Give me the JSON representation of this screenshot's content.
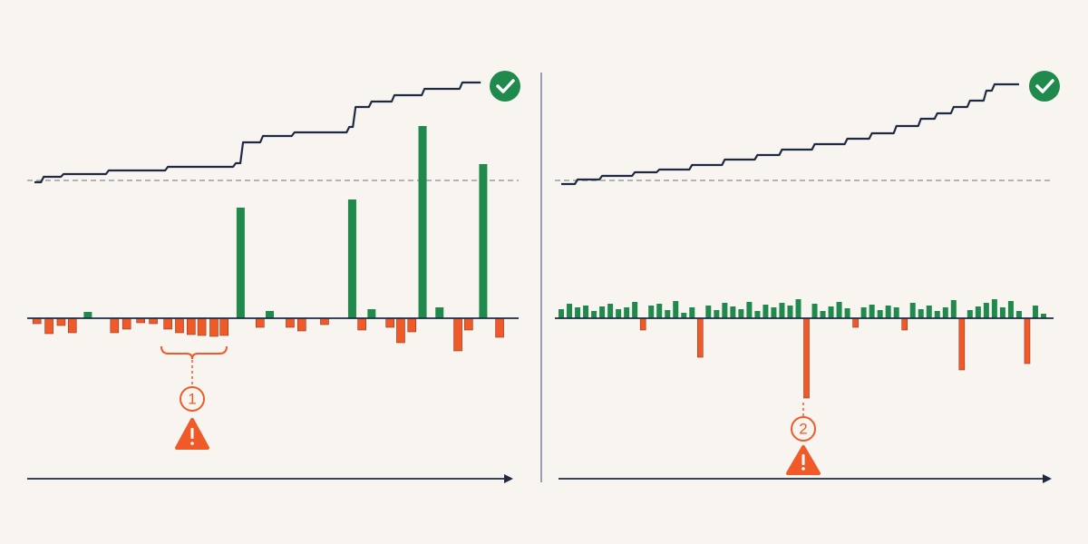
{
  "chart_data": [
    {
      "type": "bar",
      "step": true,
      "x": [
        2,
        4.5,
        7,
        9.3,
        12.5,
        18,
        20.5,
        23.4,
        26,
        29,
        31.4,
        33.8,
        36,
        38.5,
        40.6,
        44,
        48,
        50,
        54.2,
        56.6,
        61.3,
        67,
        69,
        71,
        74.8,
        77,
        79.3,
        81.5,
        85,
        88.8,
        91,
        94,
        97.4
      ],
      "values": [
        -6,
        -17,
        -8,
        -16,
        7,
        -16,
        -12,
        -5,
        -6,
        -12,
        -16,
        -18,
        -19,
        -20,
        -19,
        122,
        -10,
        8,
        -10,
        -14,
        -7,
        131,
        -13,
        10,
        -10,
        -27,
        -15,
        212,
        12,
        -36,
        -13,
        170,
        -21
      ],
      "xlim": [
        0,
        100
      ],
      "ylim": [
        -100,
        220
      ],
      "line": {
        "x": [
          1.5,
          3.4,
          7.5,
          16.8,
          29,
          43,
          44.5,
          48.6,
          55.1,
          66.4,
          67.7,
          71,
          75.7,
          81.9,
          89.7,
          93.5
        ],
        "values": [
          0,
          6,
          9,
          13,
          17,
          21,
          44,
          51,
          55,
          61,
          83,
          89,
          96,
          103,
          110,
          110
        ]
      },
      "line_ylim": [
        0,
        120
      ],
      "positive_color": "#1f8a4c",
      "negative_color": "#f05a28",
      "line_color": "#1e2a44",
      "annotation": "1"
    },
    {
      "type": "bar",
      "step": true,
      "x": [
        0,
        1,
        2,
        3,
        4,
        5,
        6,
        7,
        8,
        9,
        10,
        11,
        12,
        13,
        14,
        15,
        16,
        17,
        18,
        19,
        20,
        21,
        22,
        23,
        24,
        25,
        26,
        27,
        28,
        29,
        30,
        31,
        32,
        33,
        34,
        35,
        36,
        37,
        38,
        39,
        40,
        41,
        42,
        43,
        44,
        45,
        46,
        47,
        48,
        49,
        50,
        51,
        52,
        53,
        54,
        55,
        56,
        57,
        58,
        59
      ],
      "values": [
        10,
        16,
        12,
        14,
        8,
        13,
        16,
        10,
        12,
        18,
        -13,
        14,
        16,
        9,
        19,
        6,
        12,
        -43,
        14,
        9,
        17,
        13,
        10,
        18,
        8,
        15,
        12,
        17,
        14,
        21,
        -88,
        16,
        8,
        13,
        18,
        11,
        -10,
        12,
        15,
        9,
        14,
        12,
        -13,
        17,
        10,
        14,
        8,
        12,
        20,
        -57,
        9,
        13,
        17,
        21,
        12,
        19,
        8,
        -50,
        14,
        5
      ],
      "xlim": [
        -1,
        60
      ],
      "ylim": [
        -100,
        220
      ],
      "line": {
        "x": [
          0,
          2,
          5,
          9,
          12,
          16,
          20,
          24,
          27,
          31,
          35,
          38,
          41,
          44,
          46,
          48,
          50,
          52,
          53,
          56
        ],
        "values": [
          -2,
          3,
          7,
          11,
          14,
          19,
          25,
          30,
          36,
          42,
          48,
          54,
          62,
          70,
          76,
          83,
          90,
          101,
          108,
          108
        ]
      },
      "line_ylim": [
        0,
        120
      ],
      "positive_color": "#1f8a4c",
      "negative_color": "#f05a28",
      "line_color": "#1e2a44",
      "annotation": "2"
    }
  ]
}
